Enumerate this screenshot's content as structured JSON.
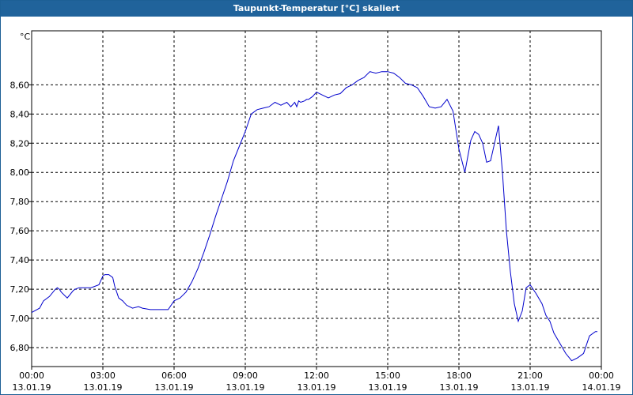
{
  "window": {
    "title": "Taupunkt-Temperatur [°C] skaliert"
  },
  "colors": {
    "titlebar": "#20639b",
    "line": "#0000cc",
    "grid": "#000000"
  },
  "chart_data": {
    "type": "line",
    "title": "Taupunkt-Temperatur [°C] skaliert",
    "ylabel": "°C",
    "xlabel": "",
    "ylim": [
      6.67,
      8.97
    ],
    "xlim": [
      "13.01.19 00:00",
      "14.01.19 00:00"
    ],
    "grid": true,
    "legend": "none",
    "y_ticks": [
      "6,80",
      "7,00",
      "7,20",
      "7,40",
      "7,60",
      "7,80",
      "8,00",
      "8,20",
      "8,40",
      "8,60"
    ],
    "x_ticks": [
      {
        "time": "00:00",
        "date": "13.01.19"
      },
      {
        "time": "03:00",
        "date": "13.01.19"
      },
      {
        "time": "06:00",
        "date": "13.01.19"
      },
      {
        "time": "09:00",
        "date": "13.01.19"
      },
      {
        "time": "12:00",
        "date": "13.01.19"
      },
      {
        "time": "15:00",
        "date": "13.01.19"
      },
      {
        "time": "18:00",
        "date": "13.01.19"
      },
      {
        "time": "21:00",
        "date": "13.01.19"
      },
      {
        "time": "00:00",
        "date": "14.01.19"
      }
    ],
    "series": [
      {
        "x": [
          "00:00",
          "00:20",
          "00:30",
          "00:45",
          "01:00",
          "01:05",
          "01:10",
          "01:15",
          "01:30",
          "01:45",
          "01:50",
          "02:00",
          "02:30",
          "02:40",
          "02:50",
          "03:00",
          "03:05",
          "03:15",
          "03:25",
          "03:30",
          "03:40",
          "03:50",
          "04:00",
          "04:15",
          "04:30",
          "04:40",
          "05:00",
          "05:15",
          "05:30",
          "05:45",
          "06:00",
          "06:15",
          "06:30",
          "06:45",
          "07:00",
          "07:15",
          "07:30",
          "07:45",
          "08:00",
          "08:15",
          "08:30",
          "08:45",
          "09:00",
          "09:15",
          "09:30",
          "09:45",
          "10:00",
          "10:15",
          "10:30",
          "10:45",
          "10:55",
          "11:05",
          "11:10",
          "11:15",
          "11:20",
          "11:30",
          "11:35",
          "11:40",
          "11:50",
          "12:00",
          "12:15",
          "12:30",
          "12:45",
          "13:00",
          "13:15",
          "13:30",
          "13:45",
          "14:00",
          "14:15",
          "14:30",
          "14:45",
          "15:00",
          "15:15",
          "15:30",
          "15:45",
          "16:00",
          "16:15",
          "16:30",
          "16:45",
          "17:00",
          "17:15",
          "17:30",
          "17:45",
          "18:00",
          "18:15",
          "18:30",
          "18:40",
          "18:50",
          "19:00",
          "19:10",
          "19:20",
          "19:30",
          "19:40",
          "19:50",
          "20:00",
          "20:10",
          "20:20",
          "20:30",
          "20:40",
          "20:50",
          "21:00",
          "21:15",
          "21:30",
          "21:40",
          "21:50",
          "22:00",
          "22:15",
          "22:30",
          "22:45",
          "23:00",
          "23:15",
          "23:30",
          "23:45",
          "23:50"
        ],
        "values": [
          7.04,
          7.07,
          7.12,
          7.15,
          7.2,
          7.21,
          7.2,
          7.18,
          7.14,
          7.19,
          7.2,
          7.21,
          7.21,
          7.22,
          7.23,
          7.29,
          7.3,
          7.3,
          7.28,
          7.22,
          7.14,
          7.12,
          7.09,
          7.07,
          7.08,
          7.07,
          7.06,
          7.06,
          7.06,
          7.06,
          7.12,
          7.14,
          7.18,
          7.25,
          7.34,
          7.45,
          7.57,
          7.7,
          7.82,
          7.94,
          8.08,
          8.18,
          8.28,
          8.4,
          8.43,
          8.44,
          8.45,
          8.48,
          8.46,
          8.48,
          8.45,
          8.48,
          8.45,
          8.49,
          8.48,
          8.49,
          8.5,
          8.5,
          8.52,
          8.55,
          8.53,
          8.51,
          8.53,
          8.54,
          8.58,
          8.6,
          8.63,
          8.65,
          8.69,
          8.68,
          8.69,
          8.69,
          8.68,
          8.65,
          8.61,
          8.6,
          8.58,
          8.52,
          8.45,
          8.44,
          8.45,
          8.5,
          8.42,
          8.16,
          8.0,
          8.22,
          8.28,
          8.26,
          8.2,
          8.07,
          8.08,
          8.2,
          8.32,
          8.0,
          7.6,
          7.32,
          7.1,
          6.98,
          7.05,
          7.21,
          7.23,
          7.17,
          7.1,
          7.02,
          6.98,
          6.9,
          6.83,
          6.76,
          6.71,
          6.73,
          6.76,
          6.88,
          6.91,
          6.91
        ]
      }
    ]
  }
}
